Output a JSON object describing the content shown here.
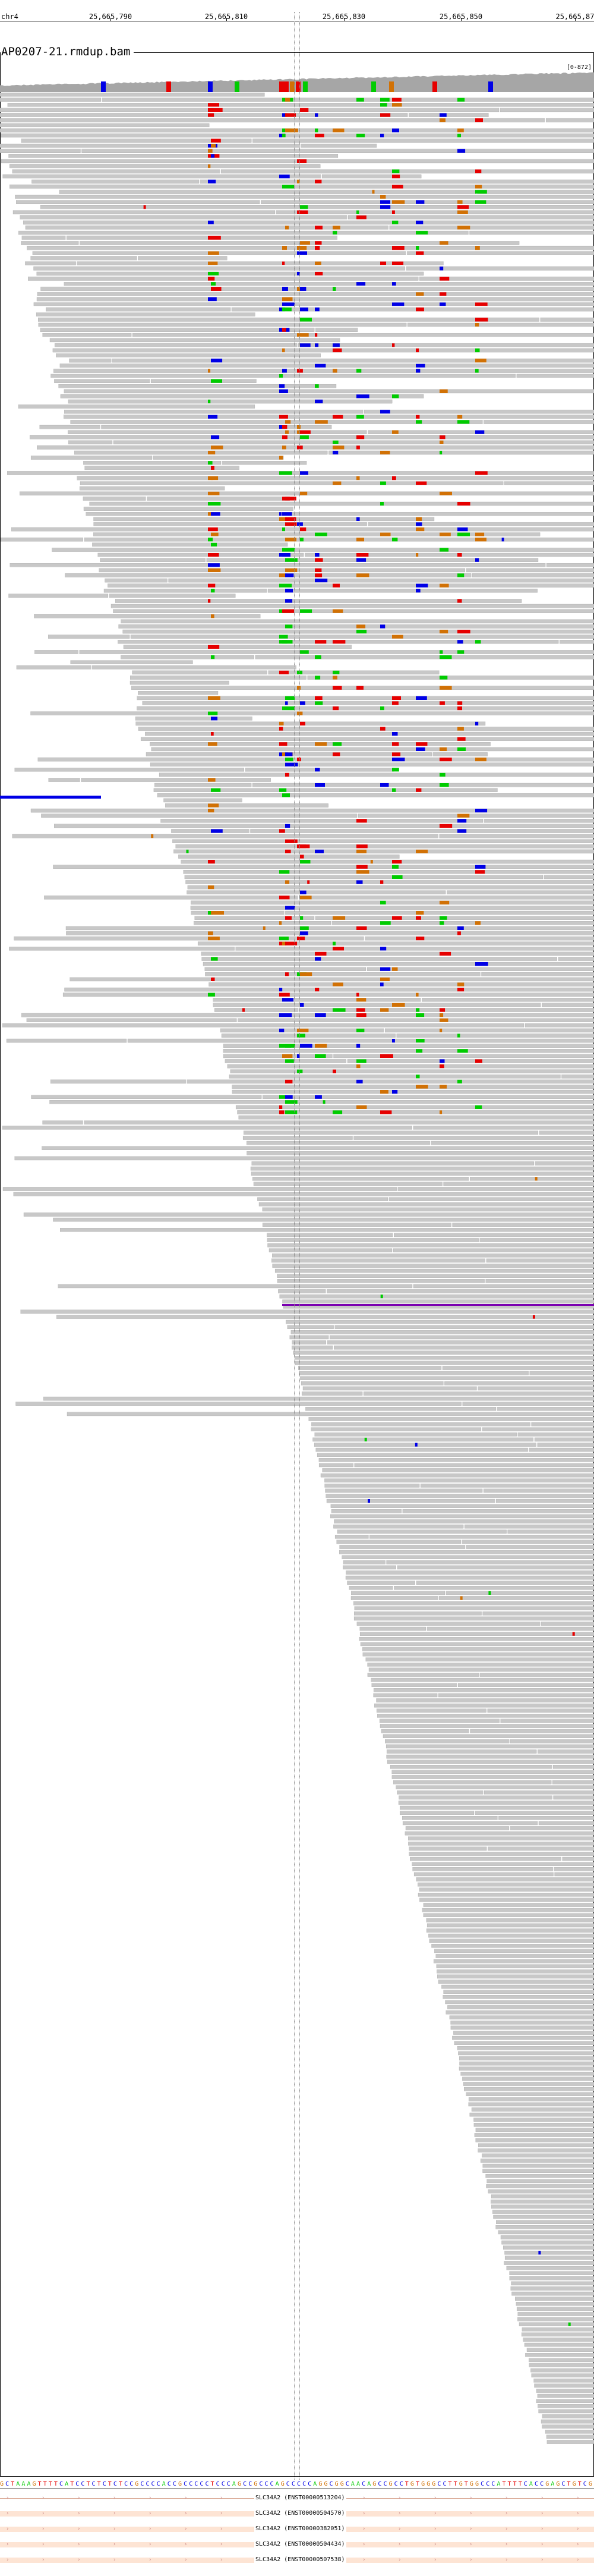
{
  "ruler": {
    "chrom": "chr4",
    "ticks": [
      "25,665,790",
      "25,665,810",
      "25,665,830",
      "25,665,850",
      "25,665,87"
    ]
  },
  "track": {
    "title": "AP0207-21.rmdup.bam",
    "coverage_scale": "[0-872]"
  },
  "colors": {
    "read": "#c8c8c8",
    "read_outline": "#a0a0a0",
    "coverage": "#a6a6a6",
    "A": "#00cc00",
    "C": "#0000e6",
    "G": "#d17105",
    "T": "#e60000",
    "deletion": "#000000",
    "insertion": "#7a00b0",
    "transcript": "#fde4d4"
  },
  "sequence": {
    "bases": "GCTAAAGTTTTCATCCTCTCTCTCCGCCCCACCGCCCCCTCCCAGCCGCCCAGCCCCCAGGCGGCAACAGCCGCCTGTGGGCCTTGTGGCCCATTTTCACCGAGCTGTCG"
  },
  "transcripts": [
    {
      "label": "SLC34A2 (ENST00000513204)"
    },
    {
      "label": "SLC34A2 (ENST00000504570)"
    },
    {
      "label": "SLC34A2 (ENST00000382051)"
    },
    {
      "label": "SLC34A2 (ENST00000504434)"
    },
    {
      "label": "SLC34A2 (ENST00000507538)"
    }
  ]
}
